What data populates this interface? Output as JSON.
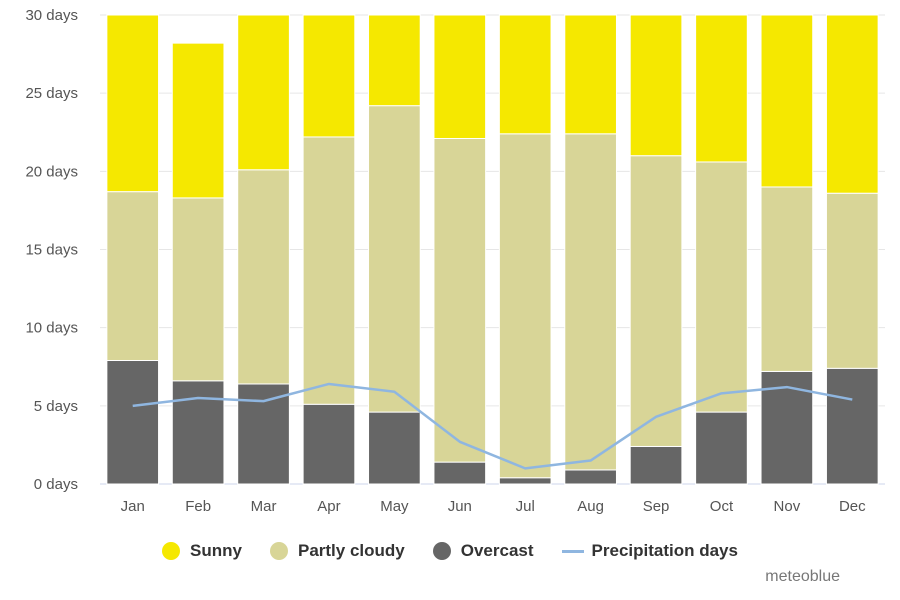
{
  "chart_data": {
    "type": "bar",
    "stacked": true,
    "categories": [
      "Jan",
      "Feb",
      "Mar",
      "Apr",
      "May",
      "Jun",
      "Jul",
      "Aug",
      "Sep",
      "Oct",
      "Nov",
      "Dec"
    ],
    "series": [
      {
        "name": "Overcast",
        "color": "#666666",
        "values": [
          7.9,
          6.6,
          6.4,
          5.1,
          4.6,
          1.4,
          0.4,
          0.9,
          2.4,
          4.6,
          7.2,
          7.4
        ]
      },
      {
        "name": "Partly cloudy",
        "color": "#d8d597",
        "values": [
          10.8,
          11.7,
          13.7,
          17.1,
          19.6,
          20.7,
          22.0,
          21.5,
          18.6,
          16.0,
          11.8,
          11.2
        ]
      },
      {
        "name": "Sunny",
        "color": "#f5e800",
        "values": [
          11.3,
          9.9,
          9.9,
          7.8,
          5.8,
          7.9,
          7.6,
          7.6,
          9.0,
          9.4,
          11.0,
          11.4
        ]
      }
    ],
    "line": {
      "name": "Precipitation days",
      "color": "#8fb6e0",
      "values": [
        5.0,
        5.5,
        5.3,
        6.4,
        5.9,
        2.7,
        1.0,
        1.5,
        4.3,
        5.8,
        6.2,
        5.4
      ]
    },
    "yticks": [
      "0 days",
      "5 days",
      "10 days",
      "15 days",
      "20 days",
      "25 days",
      "30 days"
    ],
    "ylim": [
      0,
      30
    ],
    "grid": true,
    "legend_position": "bottom"
  },
  "legend": [
    {
      "label": "Sunny",
      "color": "#f5e800",
      "kind": "dot"
    },
    {
      "label": "Partly cloudy",
      "color": "#d8d597",
      "kind": "dot"
    },
    {
      "label": "Overcast",
      "color": "#666666",
      "kind": "dot"
    },
    {
      "label": "Precipitation days",
      "color": "#8fb6e0",
      "kind": "line"
    }
  ],
  "credit": "meteoblue"
}
